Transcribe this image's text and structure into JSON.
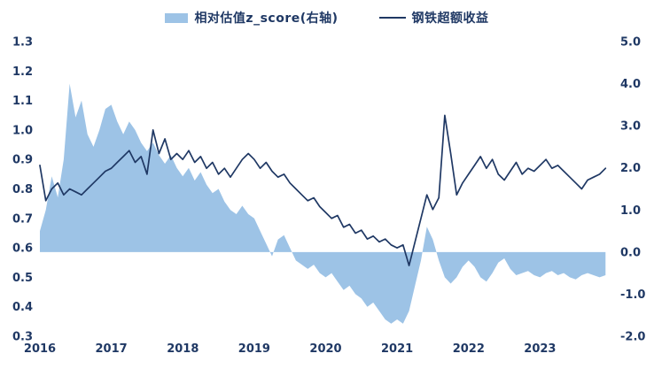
{
  "chart_data": {
    "type": "combo-area-line",
    "title": "",
    "legend_position": "top",
    "background_color": "#FFFFFF",
    "tick_label_color": "#1F3864",
    "grid": "off",
    "x_start": 2016.0,
    "x_step": 0.0833333,
    "x_range": [
      2016,
      2024
    ],
    "x_ticks": [
      "2016",
      "2017",
      "2018",
      "2019",
      "2020",
      "2021",
      "2022",
      "2023"
    ],
    "x_tick_values": [
      2016,
      2017,
      2018,
      2019,
      2020,
      2021,
      2022,
      2023
    ],
    "left_axis": {
      "min": 0.3,
      "max": 1.3,
      "ticks": [
        "1.3",
        "1.2",
        "1.1",
        "1.0",
        "0.9",
        "0.8",
        "0.7",
        "0.6",
        "0.5",
        "0.4",
        "0.3"
      ]
    },
    "right_axis": {
      "min": -2.0,
      "max": 5.0,
      "ticks": [
        "5.0",
        "4.0",
        "3.0",
        "2.0",
        "1.0",
        "0.0",
        "-1.0",
        "-2.0"
      ]
    },
    "series": [
      {
        "name": "相对估值z_score(右轴)",
        "type": "area",
        "axis": "right",
        "color": "#9DC3E6",
        "values": [
          0.5,
          1.0,
          1.8,
          1.3,
          2.2,
          4.0,
          3.2,
          3.6,
          2.8,
          2.5,
          2.9,
          3.4,
          3.5,
          3.1,
          2.8,
          3.1,
          2.9,
          2.6,
          2.4,
          2.6,
          2.3,
          2.1,
          2.3,
          2.0,
          1.8,
          2.0,
          1.7,
          1.9,
          1.6,
          1.4,
          1.5,
          1.2,
          1.0,
          0.9,
          1.1,
          0.9,
          0.8,
          0.5,
          0.2,
          -0.1,
          0.3,
          0.4,
          0.1,
          -0.2,
          -0.3,
          -0.4,
          -0.3,
          -0.5,
          -0.6,
          -0.5,
          -0.7,
          -0.9,
          -0.8,
          -1.0,
          -1.1,
          -1.3,
          -1.2,
          -1.4,
          -1.6,
          -1.7,
          -1.6,
          -1.7,
          -1.4,
          -0.8,
          -0.2,
          0.6,
          0.3,
          -0.2,
          -0.6,
          -0.75,
          -0.6,
          -0.35,
          -0.2,
          -0.35,
          -0.6,
          -0.7,
          -0.5,
          -0.25,
          -0.15,
          -0.4,
          -0.55,
          -0.5,
          -0.45,
          -0.55,
          -0.6,
          -0.5,
          -0.45,
          -0.55,
          -0.5,
          -0.6,
          -0.65,
          -0.55,
          -0.5,
          -0.55,
          -0.6,
          -0.55
        ]
      },
      {
        "name": "钢铁超额收益",
        "type": "line",
        "axis": "left",
        "color": "#1F3864",
        "values": [
          0.88,
          0.76,
          0.8,
          0.82,
          0.78,
          0.8,
          0.79,
          0.78,
          0.8,
          0.82,
          0.84,
          0.86,
          0.87,
          0.89,
          0.91,
          0.93,
          0.89,
          0.91,
          0.85,
          1.0,
          0.92,
          0.97,
          0.9,
          0.92,
          0.9,
          0.93,
          0.89,
          0.91,
          0.87,
          0.89,
          0.85,
          0.87,
          0.84,
          0.87,
          0.9,
          0.92,
          0.9,
          0.87,
          0.89,
          0.86,
          0.84,
          0.85,
          0.82,
          0.8,
          0.78,
          0.76,
          0.77,
          0.74,
          0.72,
          0.7,
          0.71,
          0.67,
          0.68,
          0.65,
          0.66,
          0.63,
          0.64,
          0.62,
          0.63,
          0.61,
          0.6,
          0.61,
          0.54,
          0.62,
          0.7,
          0.78,
          0.73,
          0.77,
          1.05,
          0.92,
          0.78,
          0.82,
          0.85,
          0.88,
          0.91,
          0.87,
          0.9,
          0.85,
          0.83,
          0.86,
          0.89,
          0.85,
          0.87,
          0.86,
          0.88,
          0.9,
          0.87,
          0.88,
          0.86,
          0.84,
          0.82,
          0.8,
          0.83,
          0.84,
          0.85,
          0.87
        ]
      }
    ]
  }
}
